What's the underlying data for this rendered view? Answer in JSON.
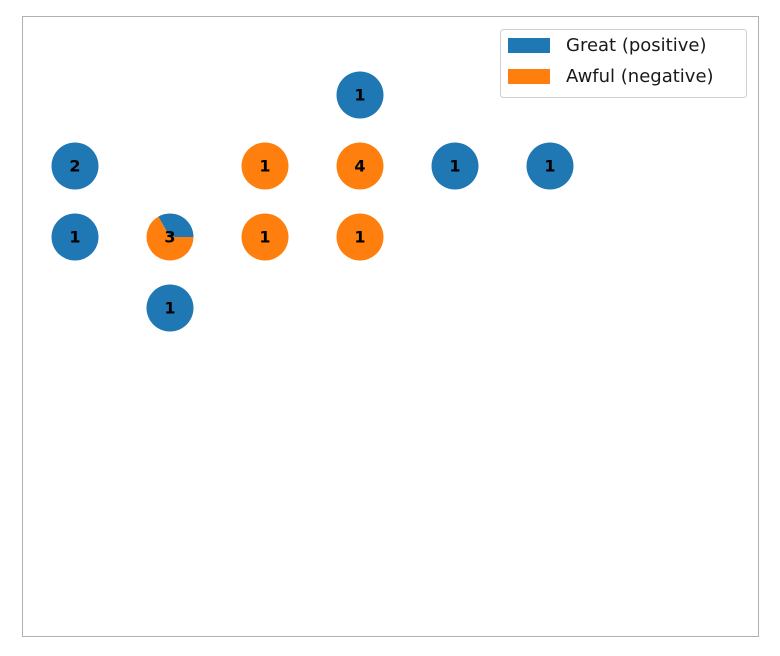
{
  "chart_data": {
    "type": "pie",
    "subtype": "som-pie-grid",
    "title": "",
    "xlabel": "",
    "ylabel": "",
    "axes_visible": false,
    "grid": false,
    "legend_position": "top-right",
    "grid_cols": 7,
    "grid_rows": 8,
    "series": [
      {
        "name": "Great (positive)",
        "color": "#1f77b4"
      },
      {
        "name": "Awful (negative)",
        "color": "#ff7f0e"
      }
    ],
    "cells": [
      {
        "col": 3,
        "row": 0,
        "count": "1",
        "values": [
          1,
          0
        ]
      },
      {
        "col": 0,
        "row": 1,
        "count": "2",
        "values": [
          2,
          0
        ]
      },
      {
        "col": 2,
        "row": 1,
        "count": "1",
        "values": [
          0,
          1
        ]
      },
      {
        "col": 3,
        "row": 1,
        "count": "4",
        "values": [
          0,
          4
        ]
      },
      {
        "col": 4,
        "row": 1,
        "count": "1",
        "values": [
          1,
          0
        ]
      },
      {
        "col": 5,
        "row": 1,
        "count": "1",
        "values": [
          1,
          0
        ]
      },
      {
        "col": 0,
        "row": 2,
        "count": "1",
        "values": [
          1,
          0
        ]
      },
      {
        "col": 1,
        "row": 2,
        "count": "3",
        "values": [
          1,
          2
        ]
      },
      {
        "col": 2,
        "row": 2,
        "count": "1",
        "values": [
          0,
          1
        ]
      },
      {
        "col": 3,
        "row": 2,
        "count": "1",
        "values": [
          0,
          1
        ]
      },
      {
        "col": 1,
        "row": 3,
        "count": "1",
        "values": [
          1,
          0
        ]
      }
    ]
  }
}
